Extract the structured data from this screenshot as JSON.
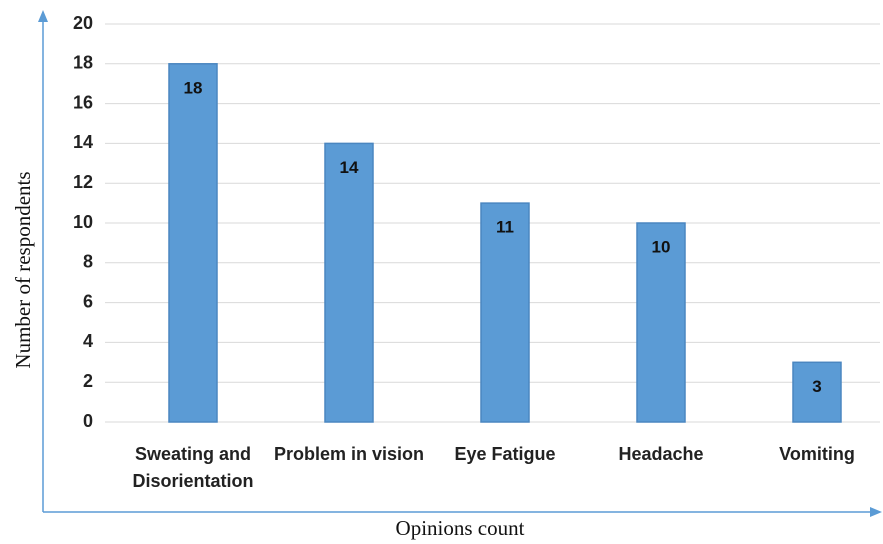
{
  "chart_data": {
    "type": "bar",
    "categories": [
      "Sweating and Disorientation",
      "Problem in vision",
      "Eye Fatigue",
      "Headache",
      "Vomiting"
    ],
    "values": [
      18,
      14,
      11,
      10,
      3
    ],
    "color": "#5b9bd5",
    "ylim": [
      0,
      20
    ],
    "yticks": [
      0,
      2,
      4,
      6,
      8,
      10,
      12,
      14,
      16,
      18,
      20
    ],
    "grid": true,
    "y_label": "Number of respondents",
    "x_label": "Opinions count"
  }
}
